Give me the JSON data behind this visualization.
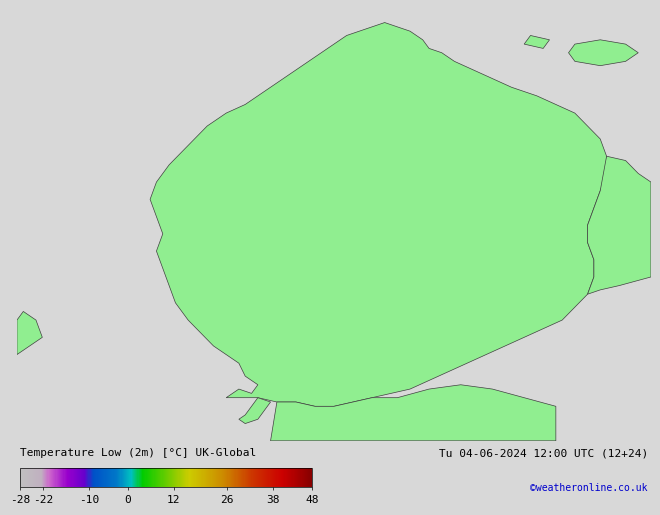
{
  "title_label": "Temperature Low (2m) [°C] UK-Global",
  "date_label": "Tu 04-06-2024 12:00 UTC (12+24)",
  "credit_label": "©weatheronline.co.uk",
  "colorbar_ticks": [
    -28,
    -22,
    -10,
    0,
    12,
    26,
    38,
    48
  ],
  "colorbar_colors": [
    "#c8c8c8",
    "#b4b4b4",
    "#a0a0a0",
    "#8c8c8c",
    "#c864c8",
    "#b450b4",
    "#a03ca0",
    "#8c288c",
    "#6400c8",
    "#5000b4",
    "#3c00a0",
    "#28008c",
    "#0078c8",
    "#0064b4",
    "#0050a0",
    "#003c8c",
    "#00c8c8",
    "#00b4b4",
    "#00a0a0",
    "#008c8c",
    "#00c800",
    "#00b400",
    "#00a000",
    "#008c00",
    "#c8c800",
    "#b4b400",
    "#a0a000",
    "#8c8c00",
    "#c86400",
    "#b45000",
    "#a03c00",
    "#8c2800",
    "#c80000",
    "#b40000",
    "#a00000",
    "#8c0000"
  ],
  "map_bg_color": "#e8e8e8",
  "land_fill_color": "#90ee90",
  "land_edge_color": "#404040",
  "sea_color": "#e0e0e0",
  "fig_bg_color": "#d8d8d8",
  "colorbar_label_fontsize": 8,
  "title_fontsize": 8,
  "date_fontsize": 8,
  "credit_fontsize": 7,
  "credit_color": "#0000cc"
}
